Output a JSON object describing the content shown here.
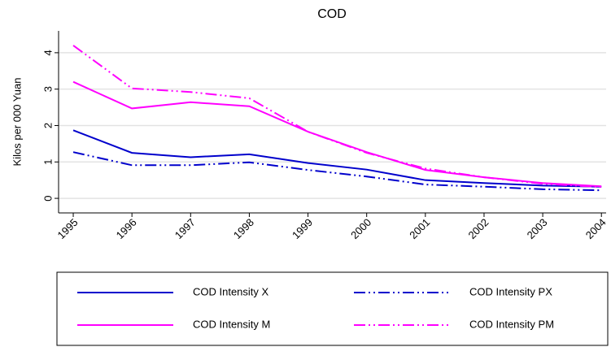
{
  "chart_data": {
    "type": "line",
    "title": "COD",
    "y_label": "Kilos per 000 Yuan",
    "x": [
      1995,
      1996,
      1997,
      1998,
      1999,
      2000,
      2001,
      2002,
      2003,
      2004
    ],
    "xlim": [
      1994.75,
      2004.08
    ],
    "xticks": [
      1995,
      1996,
      1997,
      1998,
      1999,
      2000,
      2001,
      2002,
      2003,
      2004
    ],
    "ylim": [
      -0.4,
      4.6
    ],
    "yticks": [
      0,
      1,
      2,
      3,
      4
    ],
    "grid": true,
    "legend": "bottom",
    "series": [
      {
        "name": "COD Intensity X",
        "color": "#0000cc",
        "dash": "solid",
        "values": [
          1.87,
          1.25,
          1.13,
          1.21,
          0.97,
          0.79,
          0.5,
          0.42,
          0.35,
          0.32
        ]
      },
      {
        "name": "COD Intensity PX",
        "color": "#0000cc",
        "dash": "dashdot",
        "values": [
          1.27,
          0.91,
          0.91,
          0.99,
          0.78,
          0.6,
          0.38,
          0.32,
          0.25,
          0.22
        ]
      },
      {
        "name": "COD Intensity M",
        "color": "#ff00ff",
        "dash": "solid",
        "values": [
          3.2,
          2.47,
          2.64,
          2.53,
          1.83,
          1.27,
          0.78,
          0.58,
          0.42,
          0.33
        ]
      },
      {
        "name": "COD Intensity PM",
        "color": "#ff00ff",
        "dash": "dashdot",
        "values": [
          4.2,
          3.02,
          2.92,
          2.75,
          1.83,
          1.25,
          0.82,
          0.58,
          0.4,
          0.31
        ]
      }
    ]
  }
}
